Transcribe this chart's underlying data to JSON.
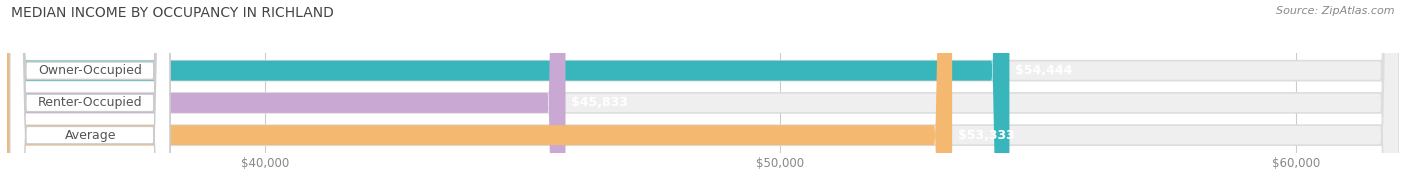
{
  "title": "MEDIAN INCOME BY OCCUPANCY IN RICHLAND",
  "source": "Source: ZipAtlas.com",
  "categories": [
    "Owner-Occupied",
    "Renter-Occupied",
    "Average"
  ],
  "values": [
    54444,
    45833,
    53333
  ],
  "bar_colors": [
    "#38b6bc",
    "#c9a8d4",
    "#f5b870"
  ],
  "bar_labels": [
    "$54,444",
    "$45,833",
    "$53,333"
  ],
  "xlim_min": 35000,
  "xlim_max": 62000,
  "xticks": [
    40000,
    50000,
    60000
  ],
  "xtick_labels": [
    "$40,000",
    "$50,000",
    "$60,000"
  ],
  "background_color": "#ffffff",
  "bar_bg_color": "#efefef",
  "title_fontsize": 10,
  "label_fontsize": 9,
  "tick_fontsize": 8.5,
  "source_fontsize": 8,
  "bar_height": 0.62
}
